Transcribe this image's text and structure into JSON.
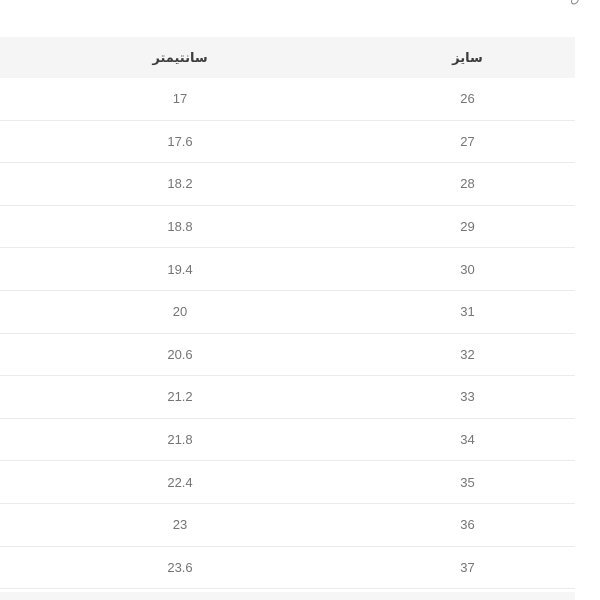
{
  "page": {
    "direction": "rtl",
    "background": "#ffffff"
  },
  "artifacts": {
    "top_right_clipped_text": "ق"
  },
  "table": {
    "columns": [
      {
        "key": "size",
        "label": "سایز"
      },
      {
        "key": "cm",
        "label": "سانتیمتر"
      }
    ],
    "rows": [
      {
        "size": "26",
        "cm": "17"
      },
      {
        "size": "27",
        "cm": "17.6"
      },
      {
        "size": "28",
        "cm": "18.2"
      },
      {
        "size": "29",
        "cm": "18.8"
      },
      {
        "size": "30",
        "cm": "19.4"
      },
      {
        "size": "31",
        "cm": "20"
      },
      {
        "size": "32",
        "cm": "20.6"
      },
      {
        "size": "33",
        "cm": "21.2"
      },
      {
        "size": "34",
        "cm": "21.8"
      },
      {
        "size": "35",
        "cm": "22.4"
      },
      {
        "size": "36",
        "cm": "23"
      },
      {
        "size": "37",
        "cm": "23.6"
      }
    ]
  },
  "colors": {
    "header_background": "#f5f5f6",
    "header_text": "#3d3d3d",
    "body_text": "#757575",
    "row_border": "#ebebeb",
    "next_band_background": "#f6f6f7"
  }
}
